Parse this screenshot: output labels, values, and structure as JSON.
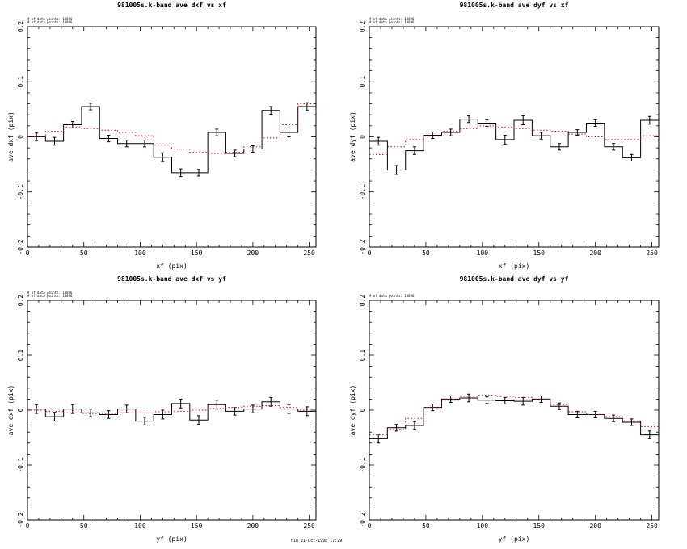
{
  "footer": "him 21-Oct-1998 17:29",
  "chart_data": [
    {
      "type": "step",
      "title": "981005s.k-band ave dxf vs xf",
      "xlabel": "xf (pix)",
      "ylabel": "ave dxf (pix)",
      "xlim": [
        0,
        256
      ],
      "ylim": [
        -0.2,
        0.2
      ],
      "xticks": [
        0,
        50,
        100,
        150,
        200,
        250
      ],
      "yticks": [
        -0.2,
        -0.1,
        0,
        0.1,
        0.2
      ],
      "ytick_labels": [
        "-0.2",
        "-0.1",
        "0",
        "0.1",
        "0.2"
      ],
      "legend": [
        "# of data points: 18896",
        "# of data points: 18896"
      ],
      "bin_edges": [
        0,
        16,
        32,
        48,
        64,
        80,
        96,
        112,
        128,
        144,
        160,
        176,
        192,
        208,
        224,
        240,
        256
      ],
      "series": [
        {
          "name": "data",
          "style": "solid-black",
          "values": [
            0.0,
            -0.008,
            0.022,
            0.055,
            -0.003,
            -0.012,
            -0.012,
            -0.037,
            -0.065,
            -0.065,
            0.008,
            -0.03,
            -0.022,
            0.048,
            0.008,
            0.055
          ],
          "errors": [
            0.007,
            0.007,
            0.006,
            0.006,
            0.006,
            0.006,
            0.006,
            0.008,
            0.007,
            0.006,
            0.006,
            0.006,
            0.006,
            0.007,
            0.008,
            0.007
          ]
        },
        {
          "name": "model",
          "style": "dotted-red",
          "values": [
            0.0,
            0.01,
            0.018,
            0.015,
            0.012,
            0.008,
            0.002,
            -0.015,
            -0.022,
            -0.028,
            -0.03,
            -0.028,
            -0.018,
            -0.002,
            0.022,
            0.06
          ]
        }
      ]
    },
    {
      "type": "step",
      "title": "981005s.k-band ave dyf vs xf",
      "xlabel": "xf (pix)",
      "ylabel": "ave dyf (pix)",
      "xlim": [
        0,
        256
      ],
      "ylim": [
        -0.2,
        0.2
      ],
      "xticks": [
        0,
        50,
        100,
        150,
        200,
        250
      ],
      "yticks": [
        -0.2,
        -0.1,
        0,
        0.1,
        0.2
      ],
      "ytick_labels": [
        "-0.2",
        "-0.1",
        "0",
        "0.1",
        "0.2"
      ],
      "legend": [
        "# of data points: 18896",
        "# of data points: 18896"
      ],
      "bin_edges": [
        0,
        16,
        32,
        48,
        64,
        80,
        96,
        112,
        128,
        144,
        160,
        176,
        192,
        208,
        224,
        240,
        256
      ],
      "series": [
        {
          "name": "data",
          "style": "solid-black",
          "values": [
            -0.008,
            -0.06,
            -0.025,
            0.003,
            0.008,
            0.032,
            0.025,
            -0.005,
            0.03,
            0.002,
            -0.018,
            0.008,
            0.025,
            -0.018,
            -0.038,
            0.03
          ],
          "errors": [
            0.007,
            0.008,
            0.007,
            0.006,
            0.006,
            0.006,
            0.006,
            0.008,
            0.008,
            0.006,
            0.006,
            0.005,
            0.006,
            0.006,
            0.006,
            0.007
          ]
        },
        {
          "name": "model",
          "style": "dotted-red",
          "values": [
            -0.032,
            -0.018,
            -0.005,
            0.002,
            0.01,
            0.015,
            0.02,
            0.018,
            0.015,
            0.012,
            0.01,
            0.005,
            0.0,
            -0.005,
            -0.005,
            0.002
          ]
        }
      ]
    },
    {
      "type": "step",
      "title": "981005s.k-band ave dxf vs yf",
      "xlabel": "yf (pix)",
      "ylabel": "ave dxf (pix)",
      "xlim": [
        0,
        256
      ],
      "ylim": [
        -0.2,
        0.2
      ],
      "xticks": [
        0,
        50,
        100,
        150,
        200,
        250
      ],
      "yticks": [
        -0.2,
        -0.1,
        0,
        0.1,
        0.2
      ],
      "ytick_labels": [
        "-0.2",
        "-0.1",
        "0",
        "0.1",
        "0.2"
      ],
      "legend": [
        "# of data points: 18896",
        "# of data points: 18896"
      ],
      "bin_edges": [
        0,
        16,
        32,
        48,
        64,
        80,
        96,
        112,
        128,
        144,
        160,
        176,
        192,
        208,
        224,
        240,
        256
      ],
      "series": [
        {
          "name": "data",
          "style": "solid-black",
          "values": [
            0.002,
            -0.012,
            0.002,
            -0.005,
            -0.008,
            0.002,
            -0.02,
            -0.008,
            0.012,
            -0.018,
            0.01,
            -0.002,
            0.002,
            0.015,
            0.002,
            -0.002
          ],
          "errors": [
            0.008,
            0.008,
            0.008,
            0.007,
            0.007,
            0.007,
            0.007,
            0.008,
            0.008,
            0.008,
            0.008,
            0.007,
            0.007,
            0.008,
            0.008,
            0.008
          ]
        },
        {
          "name": "model",
          "style": "dotted-red",
          "values": [
            0.0,
            -0.002,
            -0.005,
            -0.006,
            -0.006,
            -0.005,
            -0.005,
            -0.003,
            -0.002,
            0.0,
            0.003,
            0.005,
            0.007,
            0.008,
            0.005,
            0.0
          ]
        }
      ]
    },
    {
      "type": "step",
      "title": "981005s.k-band ave dyf vs yf",
      "xlabel": "yf (pix)",
      "ylabel": "ave dyf (pix)",
      "xlim": [
        0,
        256
      ],
      "ylim": [
        -0.2,
        0.2
      ],
      "xticks": [
        0,
        50,
        100,
        150,
        200,
        250
      ],
      "yticks": [
        -0.2,
        -0.1,
        0,
        0.1,
        0.2
      ],
      "ytick_labels": [
        "-0.2",
        "-0.1",
        "0",
        "0.1",
        "0.2"
      ],
      "legend": [
        "# of data points: 18896"
      ],
      "bin_edges": [
        0,
        16,
        32,
        48,
        64,
        80,
        96,
        112,
        128,
        144,
        160,
        176,
        192,
        208,
        224,
        240,
        256
      ],
      "series": [
        {
          "name": "data",
          "style": "solid-black",
          "values": [
            -0.052,
            -0.032,
            -0.028,
            0.005,
            0.02,
            0.022,
            0.018,
            0.017,
            0.016,
            0.02,
            0.007,
            -0.008,
            -0.008,
            -0.015,
            -0.022,
            -0.045
          ],
          "errors": [
            0.008,
            0.006,
            0.007,
            0.006,
            0.006,
            0.007,
            0.006,
            0.006,
            0.007,
            0.006,
            0.006,
            0.006,
            0.006,
            0.006,
            0.006,
            0.007
          ]
        },
        {
          "name": "model",
          "style": "dotted-red",
          "values": [
            -0.045,
            -0.035,
            -0.015,
            0.005,
            0.018,
            0.025,
            0.027,
            0.025,
            0.023,
            0.02,
            0.01,
            -0.003,
            -0.008,
            -0.012,
            -0.02,
            -0.03
          ]
        }
      ]
    }
  ]
}
